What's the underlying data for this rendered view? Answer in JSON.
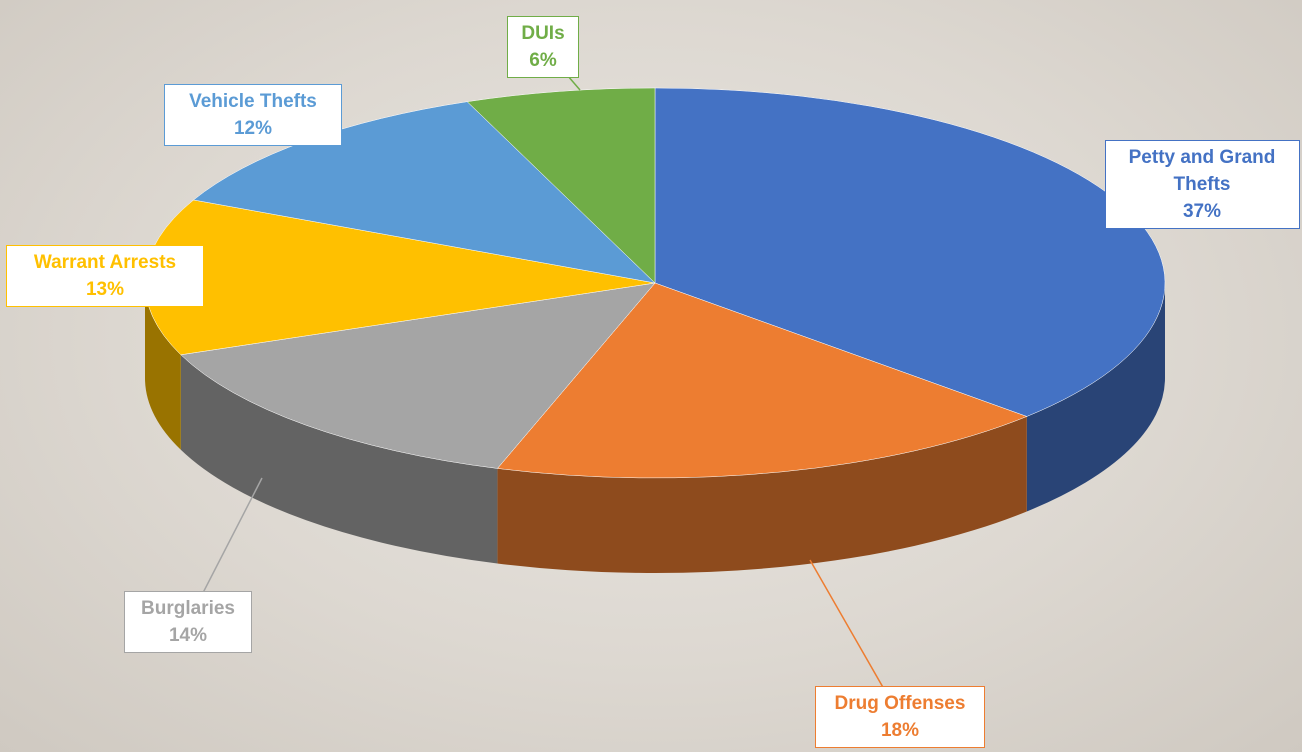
{
  "chart_data": {
    "type": "pie",
    "categories": [
      "Petty and Grand Thefts",
      "Drug Offenses",
      "Burglaries",
      "Warrant Arrests",
      "Vehicle Thefts",
      "DUIs"
    ],
    "values": [
      37,
      18,
      14,
      13,
      12,
      6
    ],
    "value_labels": [
      "37%",
      "18%",
      "14%",
      "13%",
      "12%",
      "6%"
    ],
    "colors": [
      "#4472c4",
      "#ed7d31",
      "#a5a5a5",
      "#ffc000",
      "#5b9bd5",
      "#70ad47"
    ]
  }
}
